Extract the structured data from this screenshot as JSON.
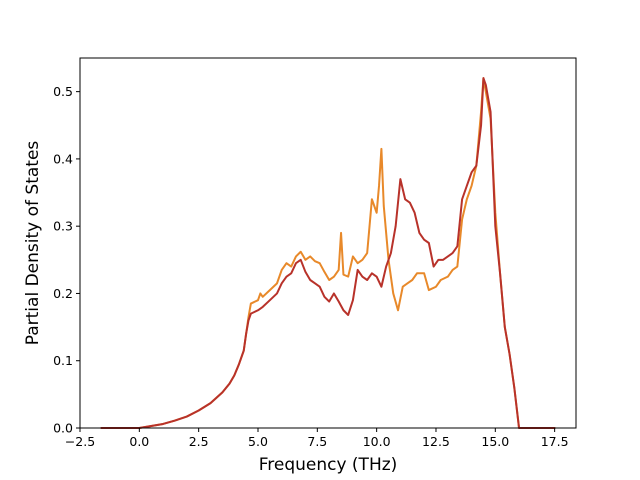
{
  "chart_data": {
    "type": "line",
    "title": "",
    "xlabel": "Frequency (THz)",
    "ylabel": "Partial Density of States",
    "xlim": [
      -2.5,
      18.4
    ],
    "ylim": [
      0.0,
      0.55
    ],
    "xticks": [
      -2.5,
      0.0,
      2.5,
      5.0,
      7.5,
      10.0,
      12.5,
      15.0,
      17.5
    ],
    "xtick_labels": [
      "−2.5",
      "0.0",
      "2.5",
      "5.0",
      "7.5",
      "10.0",
      "12.5",
      "15.0",
      "17.5"
    ],
    "yticks": [
      0.0,
      0.1,
      0.2,
      0.3,
      0.4,
      0.5
    ],
    "ytick_labels": [
      "0.0",
      "0.1",
      "0.2",
      "0.3",
      "0.4",
      "0.5"
    ],
    "grid": false,
    "legend": "none",
    "series": [
      {
        "color": "#e8892a",
        "x": [
          -1.6,
          0.0,
          0.5,
          1.0,
          1.5,
          2.0,
          2.5,
          3.0,
          3.5,
          3.8,
          4.0,
          4.2,
          4.4,
          4.5,
          4.6,
          4.7,
          5.0,
          5.1,
          5.2,
          5.5,
          5.8,
          6.0,
          6.2,
          6.4,
          6.6,
          6.8,
          7.0,
          7.2,
          7.4,
          7.6,
          7.8,
          8.0,
          8.2,
          8.4,
          8.5,
          8.6,
          8.8,
          9.0,
          9.2,
          9.4,
          9.6,
          9.8,
          10.0,
          10.1,
          10.2,
          10.3,
          10.5,
          10.7,
          10.9,
          11.1,
          11.3,
          11.5,
          11.7,
          12.0,
          12.2,
          12.5,
          12.7,
          13.0,
          13.2,
          13.4,
          13.6,
          13.8,
          14.0,
          14.2,
          14.4,
          14.5,
          14.6,
          14.8,
          15.0,
          15.2,
          15.4,
          15.6,
          15.8,
          16.0,
          16.5,
          17.0,
          17.5
        ],
        "y": [
          0.0,
          0.0,
          0.003,
          0.006,
          0.011,
          0.017,
          0.026,
          0.037,
          0.053,
          0.066,
          0.078,
          0.095,
          0.115,
          0.14,
          0.165,
          0.185,
          0.19,
          0.2,
          0.195,
          0.205,
          0.215,
          0.235,
          0.245,
          0.24,
          0.255,
          0.262,
          0.25,
          0.255,
          0.248,
          0.245,
          0.232,
          0.22,
          0.225,
          0.235,
          0.29,
          0.228,
          0.225,
          0.255,
          0.245,
          0.25,
          0.26,
          0.34,
          0.32,
          0.36,
          0.415,
          0.33,
          0.25,
          0.2,
          0.175,
          0.21,
          0.215,
          0.22,
          0.23,
          0.23,
          0.205,
          0.21,
          0.22,
          0.225,
          0.235,
          0.24,
          0.31,
          0.34,
          0.36,
          0.39,
          0.47,
          0.52,
          0.5,
          0.46,
          0.32,
          0.23,
          0.15,
          0.11,
          0.06,
          0.0,
          0.0,
          0.0,
          0.0
        ]
      },
      {
        "color": "#b8322a",
        "x": [
          -1.6,
          0.0,
          0.5,
          1.0,
          1.5,
          2.0,
          2.5,
          3.0,
          3.5,
          3.8,
          4.0,
          4.2,
          4.4,
          4.5,
          4.6,
          4.7,
          5.0,
          5.2,
          5.5,
          5.8,
          6.0,
          6.2,
          6.4,
          6.6,
          6.8,
          7.0,
          7.2,
          7.4,
          7.6,
          7.8,
          8.0,
          8.2,
          8.4,
          8.6,
          8.8,
          9.0,
          9.2,
          9.4,
          9.6,
          9.8,
          10.0,
          10.2,
          10.4,
          10.6,
          10.8,
          11.0,
          11.2,
          11.4,
          11.6,
          11.8,
          12.0,
          12.2,
          12.4,
          12.6,
          12.8,
          13.0,
          13.2,
          13.4,
          13.6,
          13.8,
          14.0,
          14.2,
          14.4,
          14.5,
          14.6,
          14.8,
          15.0,
          15.2,
          15.4,
          15.6,
          15.8,
          16.0,
          16.5,
          17.0,
          17.5
        ],
        "y": [
          0.0,
          0.0,
          0.003,
          0.006,
          0.011,
          0.017,
          0.026,
          0.037,
          0.053,
          0.066,
          0.078,
          0.095,
          0.115,
          0.14,
          0.16,
          0.17,
          0.175,
          0.18,
          0.19,
          0.2,
          0.215,
          0.225,
          0.23,
          0.245,
          0.25,
          0.232,
          0.22,
          0.215,
          0.21,
          0.195,
          0.188,
          0.2,
          0.188,
          0.175,
          0.168,
          0.19,
          0.235,
          0.225,
          0.22,
          0.23,
          0.225,
          0.21,
          0.24,
          0.26,
          0.3,
          0.37,
          0.34,
          0.335,
          0.32,
          0.29,
          0.28,
          0.275,
          0.24,
          0.25,
          0.25,
          0.255,
          0.26,
          0.27,
          0.34,
          0.36,
          0.38,
          0.39,
          0.45,
          0.52,
          0.51,
          0.47,
          0.3,
          0.23,
          0.15,
          0.11,
          0.06,
          0.0,
          0.0,
          0.0,
          0.0
        ]
      }
    ]
  }
}
